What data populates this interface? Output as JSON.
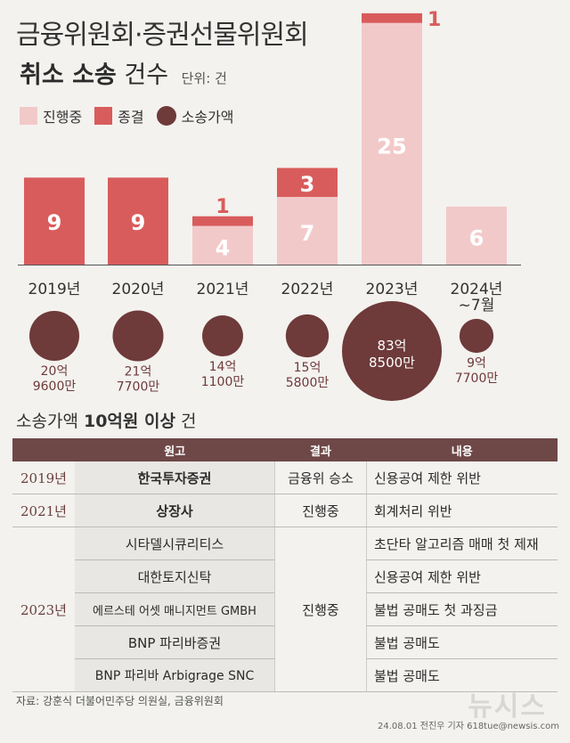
{
  "title": {
    "line1": "금융위원회·증권선물위원회",
    "line2_bold": "취소 소송",
    "line2_light": "건수",
    "unit": "단위: 건"
  },
  "legend": {
    "in_progress": "진행중",
    "concluded": "종결",
    "amount": "소송가액"
  },
  "colors": {
    "in_progress": "#f2c9c9",
    "concluded": "#d95c5c",
    "amount": "#6e3a3a",
    "header": "#6e4847"
  },
  "chart_data": {
    "type": "bar",
    "stacked": true,
    "categories": [
      "2019년",
      "2020년",
      "2021년",
      "2022년",
      "2023년",
      "2024년 ~7월"
    ],
    "series": [
      {
        "name": "진행중",
        "values": [
          0,
          0,
          4,
          7,
          25,
          6
        ]
      },
      {
        "name": "종결",
        "values": [
          9,
          9,
          1,
          3,
          1,
          0
        ]
      }
    ],
    "amounts": {
      "name": "소송가액",
      "labels": [
        [
          "20억",
          "9600만"
        ],
        [
          "21억",
          "7700만"
        ],
        [
          "14억",
          "1100만"
        ],
        [
          "15억",
          "5800만"
        ],
        [
          "83억",
          "8500만"
        ],
        [
          "9억",
          "7700만"
        ]
      ],
      "values_krw_100m": [
        20.96,
        21.77,
        14.11,
        15.58,
        83.85,
        9.77
      ]
    },
    "category_label_lines": [
      [
        "2019년"
      ],
      [
        "2020년"
      ],
      [
        "2021년"
      ],
      [
        "2022년"
      ],
      [
        "2023년"
      ],
      [
        "2024년",
        "~7월"
      ]
    ],
    "ylim": [
      0,
      27
    ]
  },
  "table": {
    "subtitle_prefix": "소송가액",
    "subtitle_bold": "10억원 이상",
    "subtitle_suffix": "건",
    "headers": [
      "원고",
      "결과",
      "내용"
    ],
    "rows": [
      {
        "year": "2019년",
        "plaintiff": "한국투자증권",
        "result": "금융위 승소",
        "content": "신용공여 제한 위반"
      },
      {
        "year": "2021년",
        "plaintiff": "상장사",
        "result": "진행중",
        "content": "회계처리 위반"
      },
      {
        "year": "2023년",
        "plaintiff": "시타델시큐리티스",
        "result": "진행중",
        "content": "초단타 알고리즘 매매 첫 제재"
      },
      {
        "year": "",
        "plaintiff": "대한토지신탁",
        "result": "",
        "content": "신용공여 제한 위반"
      },
      {
        "year": "",
        "plaintiff": "에르스테 어셋 매니지먼트 GMBH",
        "result": "",
        "content": "불법 공매도 첫 과징금"
      },
      {
        "year": "",
        "plaintiff": "BNP 파리바증권",
        "result": "",
        "content": "불법 공매도"
      },
      {
        "year": "",
        "plaintiff": "BNP 파리바 Arbigrage SNC",
        "result": "",
        "content": "불법 공매도"
      }
    ]
  },
  "source": "자료: 강훈식 더불어민주당 의원실, 금융위원회",
  "credit": "24.08.01 전진우 기자 618tue@newsis.com",
  "watermark": "뉴시스"
}
